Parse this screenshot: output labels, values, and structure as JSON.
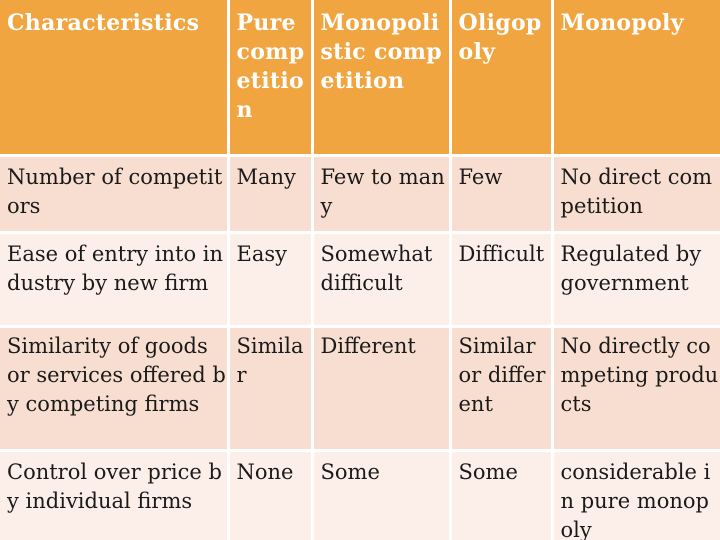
{
  "table": {
    "headers": [
      "Characteristics",
      "Pure competition",
      "Monopolistic competition",
      "Oligopoly",
      "Monopoly"
    ],
    "rows": [
      [
        "Number of competitors",
        "Many",
        "Few to many",
        "Few",
        "No direct competition"
      ],
      [
        "Ease of entry into industry by new firm",
        "Easy",
        "Somewhat difficult",
        "Difficult",
        "Regulated by government"
      ],
      [
        "Similarity of goods or services offered by competing firms",
        "Similar",
        "Different",
        "Similar or different",
        "No directly competing products"
      ],
      [
        "Control over price by individual firms",
        "None",
        "Some",
        "Some",
        "considerable in pure monopoly"
      ]
    ]
  },
  "colors": {
    "header_bg": "#f0a541",
    "row_odd_bg": "#f8ded0",
    "row_even_bg": "#fcefe9",
    "border": "#ffffff"
  }
}
